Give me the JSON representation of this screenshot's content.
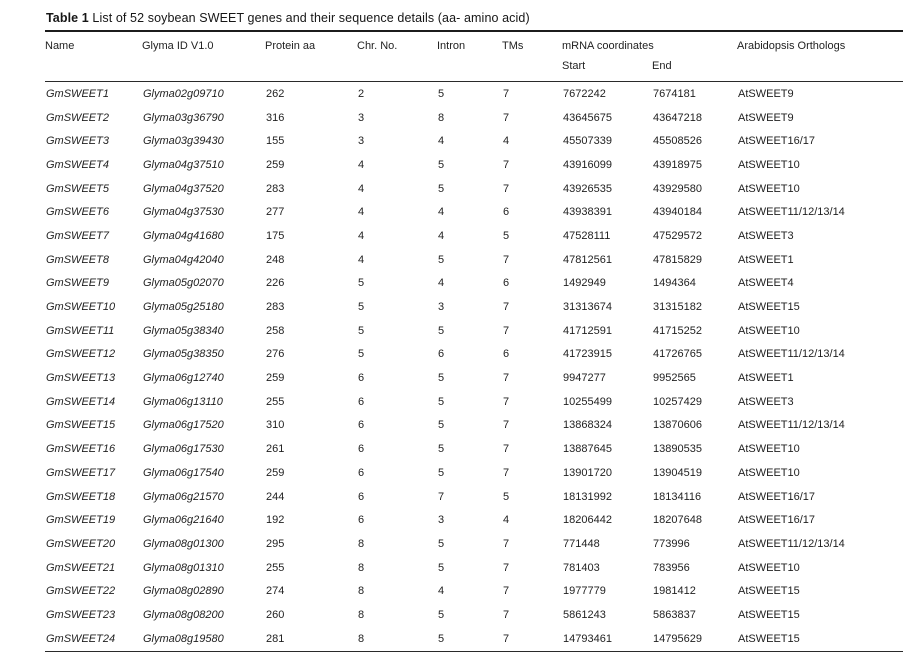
{
  "caption": {
    "label": "Table 1",
    "text": " List of 52 soybean SWEET genes and their sequence details (aa- amino acid)"
  },
  "table": {
    "columns": {
      "name": "Name",
      "glyma_id": "Glyma ID V1.0",
      "protein_aa": "Protein aa",
      "chr_no": "Chr. No.",
      "intron": "Intron",
      "tms": "TMs",
      "mrna_group": "mRNA coordinates",
      "ortholog": "Arabidopsis Orthologs"
    },
    "sub_columns": {
      "start": "Start",
      "end": "End"
    },
    "rows": [
      {
        "name": "GmSWEET1",
        "glyma_id": "Glyma02g09710",
        "protein_aa": "262",
        "chr_no": "2",
        "intron": "5",
        "tms": "7",
        "start": "7672242",
        "end": "7674181",
        "ortholog": "AtSWEET9"
      },
      {
        "name": "GmSWEET2",
        "glyma_id": "Glyma03g36790",
        "protein_aa": "316",
        "chr_no": "3",
        "intron": "8",
        "tms": "7",
        "start": "43645675",
        "end": "43647218",
        "ortholog": "AtSWEET9"
      },
      {
        "name": "GmSWEET3",
        "glyma_id": "Glyma03g39430",
        "protein_aa": "155",
        "chr_no": "3",
        "intron": "4",
        "tms": "4",
        "start": "45507339",
        "end": "45508526",
        "ortholog": "AtSWEET16/17"
      },
      {
        "name": "GmSWEET4",
        "glyma_id": "Glyma04g37510",
        "protein_aa": "259",
        "chr_no": "4",
        "intron": "5",
        "tms": "7",
        "start": "43916099",
        "end": "43918975",
        "ortholog": "AtSWEET10"
      },
      {
        "name": "GmSWEET5",
        "glyma_id": "Glyma04g37520",
        "protein_aa": "283",
        "chr_no": "4",
        "intron": "5",
        "tms": "7",
        "start": "43926535",
        "end": "43929580",
        "ortholog": "AtSWEET10"
      },
      {
        "name": "GmSWEET6",
        "glyma_id": "Glyma04g37530",
        "protein_aa": "277",
        "chr_no": "4",
        "intron": "4",
        "tms": "6",
        "start": "43938391",
        "end": "43940184",
        "ortholog": "AtSWEET11/12/13/14"
      },
      {
        "name": "GmSWEET7",
        "glyma_id": "Glyma04g41680",
        "protein_aa": "175",
        "chr_no": "4",
        "intron": "4",
        "tms": "5",
        "start": "47528111",
        "end": "47529572",
        "ortholog": "AtSWEET3"
      },
      {
        "name": "GmSWEET8",
        "glyma_id": "Glyma04g42040",
        "protein_aa": "248",
        "chr_no": "4",
        "intron": "5",
        "tms": "7",
        "start": "47812561",
        "end": "47815829",
        "ortholog": "AtSWEET1"
      },
      {
        "name": "GmSWEET9",
        "glyma_id": "Glyma05g02070",
        "protein_aa": "226",
        "chr_no": "5",
        "intron": "4",
        "tms": "6",
        "start": "1492949",
        "end": "1494364",
        "ortholog": "AtSWEET4"
      },
      {
        "name": "GmSWEET10",
        "glyma_id": "Glyma05g25180",
        "protein_aa": "283",
        "chr_no": "5",
        "intron": "3",
        "tms": "7",
        "start": "31313674",
        "end": "31315182",
        "ortholog": "AtSWEET15"
      },
      {
        "name": "GmSWEET11",
        "glyma_id": "Glyma05g38340",
        "protein_aa": "258",
        "chr_no": "5",
        "intron": "5",
        "tms": "7",
        "start": "41712591",
        "end": "41715252",
        "ortholog": "AtSWEET10"
      },
      {
        "name": "GmSWEET12",
        "glyma_id": "Glyma05g38350",
        "protein_aa": "276",
        "chr_no": "5",
        "intron": "6",
        "tms": "6",
        "start": "41723915",
        "end": "41726765",
        "ortholog": "AtSWEET11/12/13/14"
      },
      {
        "name": "GmSWEET13",
        "glyma_id": "Glyma06g12740",
        "protein_aa": "259",
        "chr_no": "6",
        "intron": "5",
        "tms": "7",
        "start": "9947277",
        "end": "9952565",
        "ortholog": "AtSWEET1"
      },
      {
        "name": "GmSWEET14",
        "glyma_id": "Glyma06g13110",
        "protein_aa": "255",
        "chr_no": "6",
        "intron": "5",
        "tms": "7",
        "start": "10255499",
        "end": "10257429",
        "ortholog": "AtSWEET3"
      },
      {
        "name": "GmSWEET15",
        "glyma_id": "Glyma06g17520",
        "protein_aa": "310",
        "chr_no": "6",
        "intron": "5",
        "tms": "7",
        "start": "13868324",
        "end": "13870606",
        "ortholog": "AtSWEET11/12/13/14"
      },
      {
        "name": "GmSWEET16",
        "glyma_id": "Glyma06g17530",
        "protein_aa": "261",
        "chr_no": "6",
        "intron": "5",
        "tms": "7",
        "start": "13887645",
        "end": "13890535",
        "ortholog": "AtSWEET10"
      },
      {
        "name": "GmSWEET17",
        "glyma_id": "Glyma06g17540",
        "protein_aa": "259",
        "chr_no": "6",
        "intron": "5",
        "tms": "7",
        "start": "13901720",
        "end": "13904519",
        "ortholog": "AtSWEET10"
      },
      {
        "name": "GmSWEET18",
        "glyma_id": "Glyma06g21570",
        "protein_aa": "244",
        "chr_no": "6",
        "intron": "7",
        "tms": "5",
        "start": "18131992",
        "end": "18134116",
        "ortholog": "AtSWEET16/17"
      },
      {
        "name": "GmSWEET19",
        "glyma_id": "Glyma06g21640",
        "protein_aa": "192",
        "chr_no": "6",
        "intron": "3",
        "tms": "4",
        "start": "18206442",
        "end": "18207648",
        "ortholog": "AtSWEET16/17"
      },
      {
        "name": "GmSWEET20",
        "glyma_id": "Glyma08g01300",
        "protein_aa": "295",
        "chr_no": "8",
        "intron": "5",
        "tms": "7",
        "start": "771448",
        "end": "773996",
        "ortholog": "AtSWEET11/12/13/14"
      },
      {
        "name": "GmSWEET21",
        "glyma_id": "Glyma08g01310",
        "protein_aa": "255",
        "chr_no": "8",
        "intron": "5",
        "tms": "7",
        "start": "781403",
        "end": "783956",
        "ortholog": "AtSWEET10"
      },
      {
        "name": "GmSWEET22",
        "glyma_id": "Glyma08g02890",
        "protein_aa": "274",
        "chr_no": "8",
        "intron": "4",
        "tms": "7",
        "start": "1977779",
        "end": "1981412",
        "ortholog": "AtSWEET15"
      },
      {
        "name": "GmSWEET23",
        "glyma_id": "Glyma08g08200",
        "protein_aa": "260",
        "chr_no": "8",
        "intron": "5",
        "tms": "7",
        "start": "5861243",
        "end": "5863837",
        "ortholog": "AtSWEET15"
      },
      {
        "name": "GmSWEET24",
        "glyma_id": "Glyma08g19580",
        "protein_aa": "281",
        "chr_no": "8",
        "intron": "5",
        "tms": "7",
        "start": "14793461",
        "end": "14795629",
        "ortholog": "AtSWEET15"
      }
    ]
  },
  "colors": {
    "text": "#1b1b1b",
    "rule": "#1c1c1c",
    "background": "#ffffff"
  }
}
